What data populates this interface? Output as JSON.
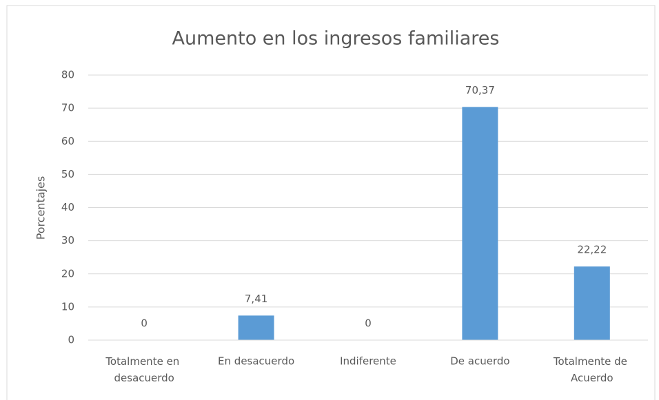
{
  "chart_data": {
    "type": "bar",
    "title": "Aumento en los ingresos familiares",
    "y_label": "Porcentajes",
    "categories": [
      "Totalmente en desacuerdo",
      "En desacuerdo",
      "Indiferente",
      "De acuerdo",
      "Totalmente de Acuerdo"
    ],
    "values": [
      0,
      7.41,
      0,
      70.37,
      22.22
    ],
    "value_labels": [
      "0",
      "7,41",
      "0",
      "70,37",
      "22,22"
    ],
    "color": "#5b9bd5",
    "ylim": [
      0,
      80
    ],
    "yticks": [
      0,
      10,
      20,
      30,
      40,
      50,
      60,
      70,
      80
    ],
    "grid": true
  }
}
